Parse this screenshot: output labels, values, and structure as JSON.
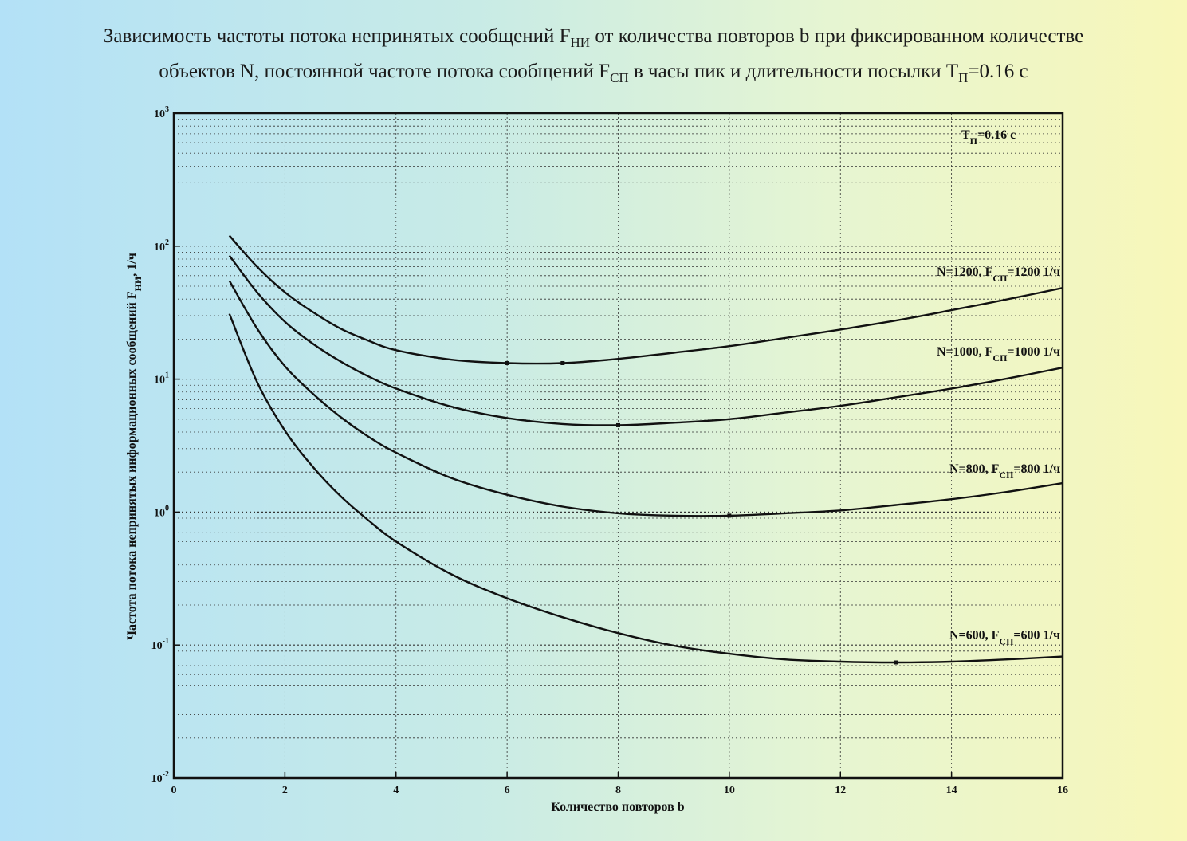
{
  "title": {
    "line1_a": "Зависимость частоты потока непринятых сообщений F",
    "line1_sub": "НИ",
    "line1_b": " от количества повторов b при фиксированном количестве",
    "line2_a": "объектов N, постоянной частоте потока сообщений F",
    "line2_sub": "СП",
    "line2_b": " в часы пик и длительности посылки T",
    "line2_sub2": "П",
    "line2_c": "=0.16 с"
  },
  "chart_data": {
    "type": "line",
    "xlabel": "Количество повторов b",
    "ylabel_a": "Частота потока непринятых информационных сообщений F",
    "ylabel_sub": "НИ",
    "ylabel_b": ", 1/ч",
    "xlim": [
      0,
      16
    ],
    "ylim": [
      0.01,
      1000
    ],
    "yscale": "log",
    "grid": true,
    "x_ticks": [
      "0",
      "2",
      "4",
      "6",
      "8",
      "10",
      "12",
      "14",
      "16"
    ],
    "y_ticks": [
      {
        "base": "10",
        "exp": "-2"
      },
      {
        "base": "10",
        "exp": "-1"
      },
      {
        "base": "10",
        "exp": "0"
      },
      {
        "base": "10",
        "exp": "1"
      },
      {
        "base": "10",
        "exp": "2"
      },
      {
        "base": "10",
        "exp": "3"
      }
    ],
    "annotation": {
      "a": "T",
      "sub": "П",
      "b": "=0.16 с"
    },
    "series": [
      {
        "label_a": "N=1200, F",
        "label_sub": "СП",
        "label_b": "=1200 1/ч",
        "x": [
          1,
          1.5,
          2,
          2.5,
          3,
          3.5,
          4,
          5,
          6,
          7,
          8,
          9,
          10,
          11,
          12,
          13,
          14,
          15,
          16
        ],
        "y": [
          120,
          70,
          45,
          32,
          24,
          19.5,
          16.5,
          14,
          13.2,
          13.2,
          14.2,
          15.8,
          17.7,
          20.4,
          23.6,
          27.6,
          33,
          39.8,
          48.5
        ],
        "markers_x": [
          6,
          7
        ]
      },
      {
        "label_a": "N=1000, F",
        "label_sub": "СП",
        "label_b": "=1000 1/ч",
        "x": [
          1,
          1.5,
          2,
          2.5,
          3,
          3.5,
          4,
          5,
          6,
          7,
          8,
          9,
          10,
          11,
          12,
          13,
          14,
          15,
          16
        ],
        "y": [
          85,
          45,
          27,
          18.5,
          13.6,
          10.5,
          8.5,
          6.2,
          5.1,
          4.6,
          4.5,
          4.7,
          5.0,
          5.6,
          6.3,
          7.3,
          8.5,
          10.1,
          12.2
        ],
        "markers_x": [
          8
        ]
      },
      {
        "label_a": "N=800, F",
        "label_sub": "СП",
        "label_b": "=800 1/ч",
        "x": [
          1,
          1.5,
          2,
          2.5,
          3,
          3.5,
          4,
          5,
          6,
          7,
          8,
          9,
          10,
          11,
          12,
          13,
          14,
          15,
          16
        ],
        "y": [
          55,
          24,
          12.5,
          7.8,
          5.2,
          3.7,
          2.8,
          1.8,
          1.35,
          1.1,
          0.98,
          0.94,
          0.94,
          0.98,
          1.03,
          1.13,
          1.25,
          1.42,
          1.65
        ],
        "markers_x": [
          10
        ]
      },
      {
        "label_a": "N=600, F",
        "label_sub": "СП",
        "label_b": "=600 1/ч",
        "x": [
          1,
          1.5,
          2,
          2.5,
          3,
          3.5,
          4,
          5,
          6,
          7,
          8,
          9,
          10,
          11,
          12,
          13,
          14,
          15,
          16
        ],
        "y": [
          31,
          9.5,
          4.1,
          2.2,
          1.32,
          0.87,
          0.6,
          0.34,
          0.225,
          0.162,
          0.123,
          0.099,
          0.086,
          0.078,
          0.075,
          0.074,
          0.075,
          0.078,
          0.082
        ],
        "markers_x": [
          13
        ]
      }
    ]
  }
}
